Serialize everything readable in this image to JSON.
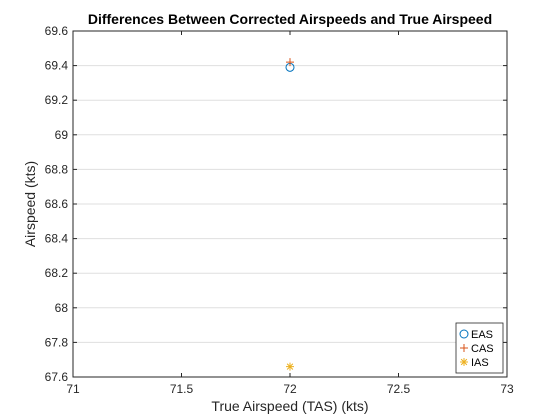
{
  "chart_data": {
    "type": "scatter",
    "title": "Differences Between Corrected Airspeeds and True Airspeed",
    "xlabel": "True Airspeed (TAS) (kts)",
    "ylabel": "Airspeed (kts)",
    "xlim": [
      71,
      73
    ],
    "ylim": [
      67.6,
      69.6
    ],
    "xticks": [
      71,
      71.5,
      72,
      72.5,
      73
    ],
    "xtick_labels": [
      "71",
      "71.5",
      "72",
      "72.5",
      "73"
    ],
    "yticks": [
      67.6,
      67.8,
      68,
      68.2,
      68.4,
      68.6,
      68.8,
      69,
      69.2,
      69.4,
      69.6
    ],
    "ytick_labels": [
      "67.6",
      "67.8",
      "68",
      "68.2",
      "68.4",
      "68.6",
      "68.8",
      "69",
      "69.2",
      "69.4",
      "69.6"
    ],
    "grid": "horizontal",
    "legend_position": "bottom-right",
    "series": [
      {
        "name": "EAS",
        "marker": "circle",
        "color": "#0072BD",
        "points": [
          {
            "x": 72,
            "y": 69.39
          }
        ]
      },
      {
        "name": "CAS",
        "marker": "plus",
        "color": "#D95319",
        "points": [
          {
            "x": 72,
            "y": 69.42
          }
        ]
      },
      {
        "name": "IAS",
        "marker": "asterisk",
        "color": "#EDB120",
        "points": [
          {
            "x": 72,
            "y": 67.66
          }
        ]
      }
    ]
  }
}
